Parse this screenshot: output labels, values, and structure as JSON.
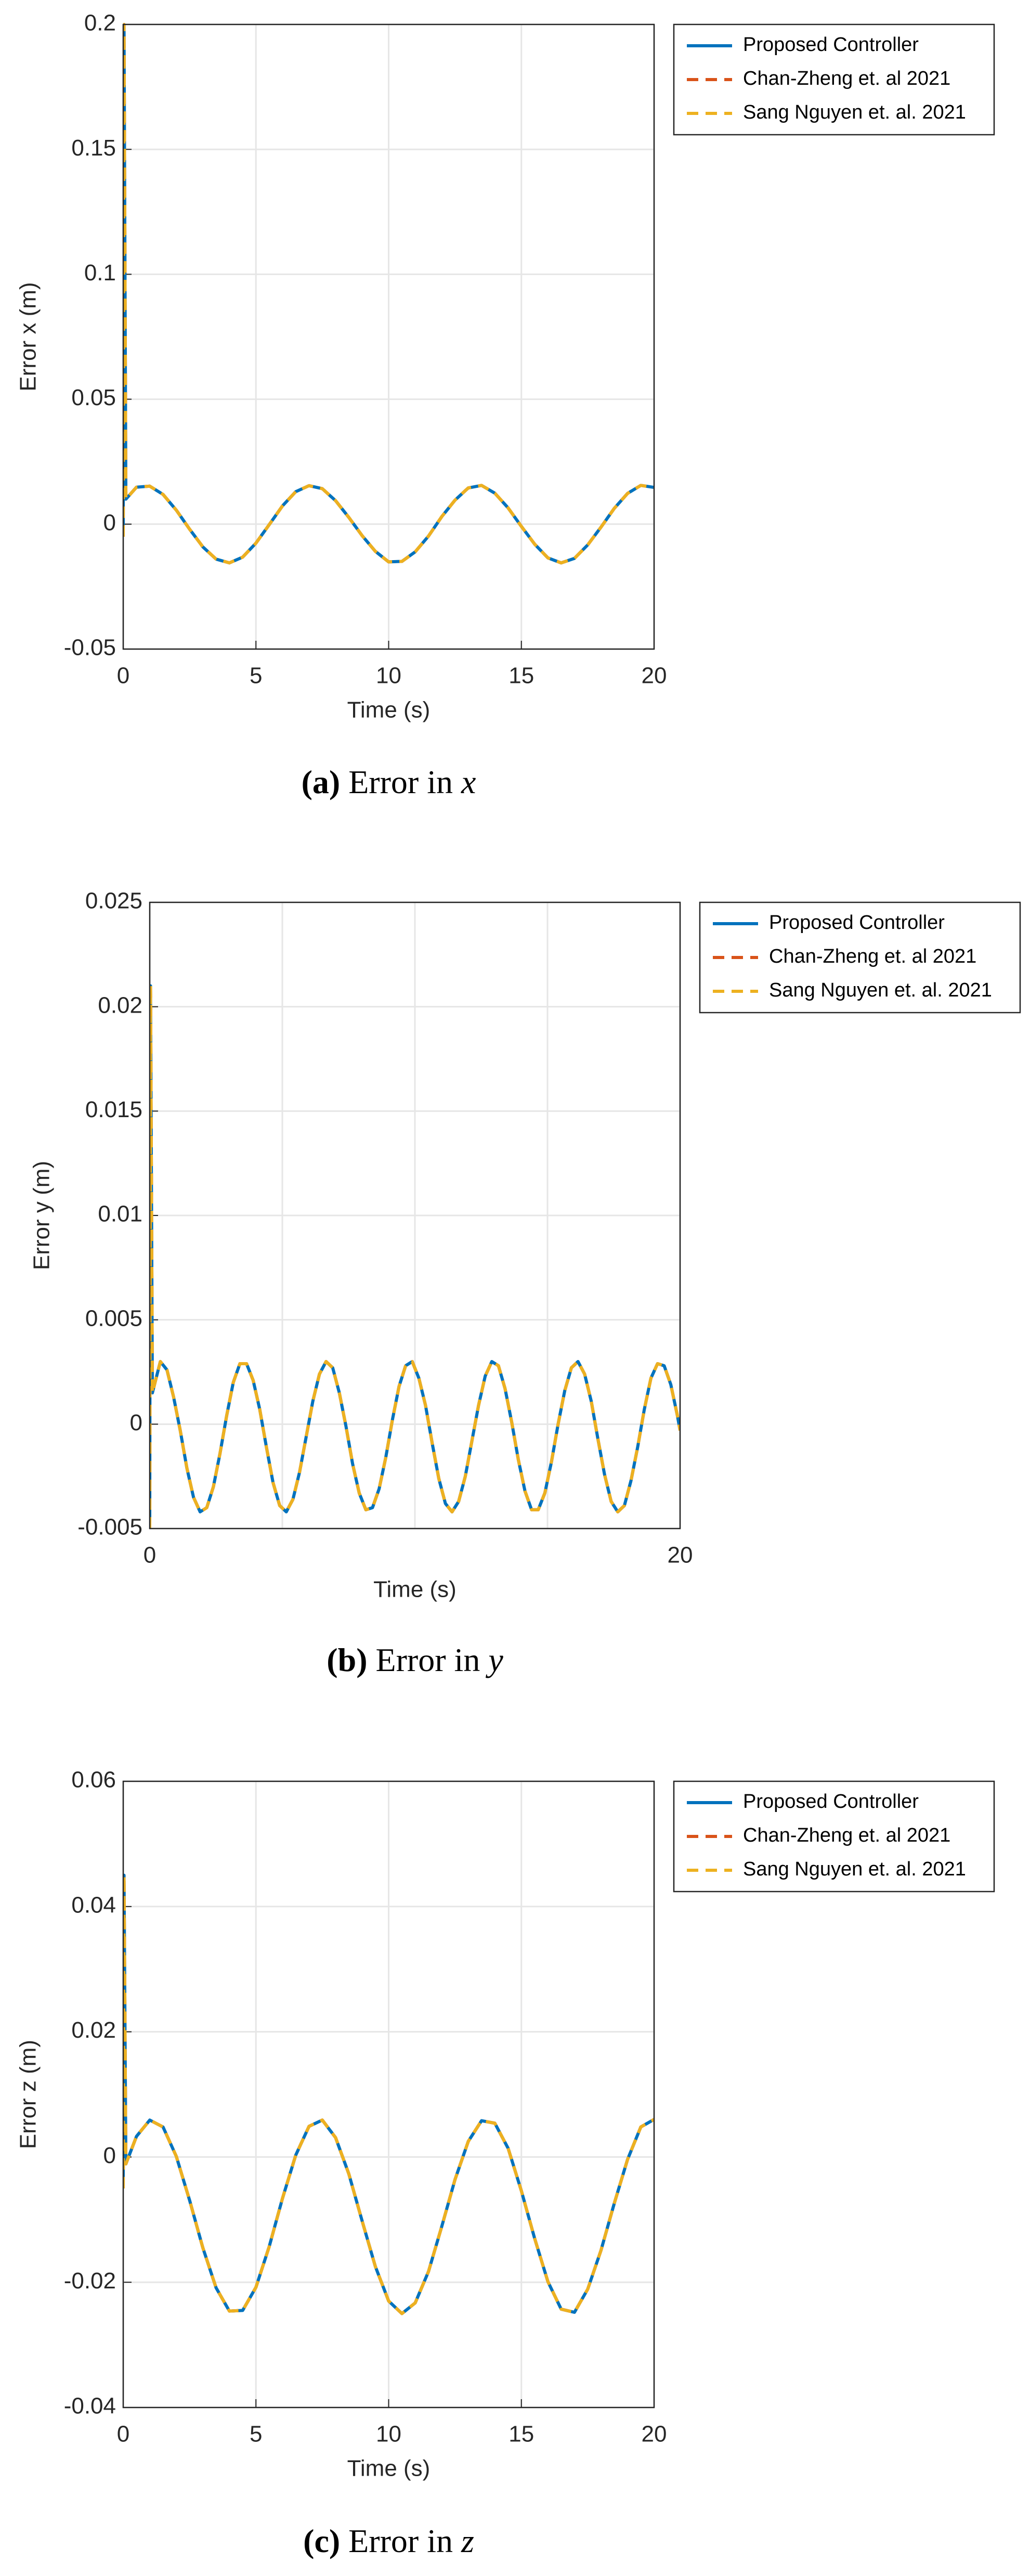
{
  "chart_data": [
    {
      "type": "line",
      "ylabel": "Error x (m)",
      "xlabel": "Time (s)",
      "caption": {
        "label": "(a)",
        "text": "Error in",
        "var": "x"
      },
      "xlim": [
        0,
        20
      ],
      "xticks": [
        0,
        5,
        10,
        15,
        20
      ],
      "ylim": [
        -0.05,
        0.2
      ],
      "yticks": [
        -0.05,
        0,
        0.05,
        0.1,
        0.15,
        0.2
      ],
      "grid": true,
      "x": [
        0,
        0.03,
        0.1,
        0.5,
        1,
        1.5,
        2,
        2.5,
        3,
        3.5,
        4,
        4.5,
        5,
        5.5,
        6,
        6.5,
        7,
        7.5,
        8,
        8.5,
        9,
        9.5,
        10,
        10.5,
        11,
        11.5,
        12,
        12.5,
        13,
        13.5,
        14,
        14.5,
        15,
        15.5,
        16,
        16.5,
        17,
        17.5,
        18,
        18.5,
        19,
        19.5,
        20
      ],
      "series": [
        {
          "name": "Proposed Controller",
          "color": "#0072BD",
          "style": "solid",
          "values": [
            -0.005,
            0.2,
            0.01,
            0.0148,
            0.0152,
            0.0119,
            0.0056,
            -0.002,
            -0.0091,
            -0.014,
            -0.0155,
            -0.0132,
            -0.0076,
            -0.0002,
            0.0073,
            0.013,
            0.0154,
            0.0142,
            0.0094,
            0.0027,
            -0.0046,
            -0.0109,
            -0.0151,
            -0.0149,
            -0.0111,
            -0.0048,
            0.003,
            0.0096,
            0.0145,
            0.0155,
            0.0124,
            0.0065,
            -0.0009,
            -0.008,
            -0.0135,
            -0.0155,
            -0.0137,
            -0.0083,
            -0.0012,
            0.0063,
            0.0123,
            0.0155,
            0.0147
          ]
        },
        {
          "name": "Chan-Zheng et. al 2021",
          "color": "#D95319",
          "style": "dashed",
          "values": [
            -0.005,
            0.2,
            0.01,
            0.0148,
            0.0152,
            0.0119,
            0.0056,
            -0.002,
            -0.0091,
            -0.014,
            -0.0155,
            -0.0132,
            -0.0076,
            -0.0002,
            0.0073,
            0.013,
            0.0154,
            0.0142,
            0.0094,
            0.0027,
            -0.0046,
            -0.0109,
            -0.0151,
            -0.0149,
            -0.0111,
            -0.0048,
            0.003,
            0.0096,
            0.0145,
            0.0155,
            0.0124,
            0.0065,
            -0.0009,
            -0.008,
            -0.0135,
            -0.0155,
            -0.0137,
            -0.0083,
            -0.0012,
            0.0063,
            0.0123,
            0.0155,
            0.0147
          ]
        },
        {
          "name": "Sang Nguyen et. al. 2021",
          "color": "#EDB120",
          "style": "dashed",
          "values": [
            -0.005,
            0.2,
            0.01,
            0.0148,
            0.0152,
            0.0119,
            0.0056,
            -0.002,
            -0.0091,
            -0.014,
            -0.0155,
            -0.0132,
            -0.0076,
            -0.0002,
            0.0073,
            0.013,
            0.0154,
            0.0142,
            0.0094,
            0.0027,
            -0.0046,
            -0.0109,
            -0.0151,
            -0.0149,
            -0.0111,
            -0.0048,
            0.003,
            0.0096,
            0.0145,
            0.0155,
            0.0124,
            0.0065,
            -0.0009,
            -0.008,
            -0.0135,
            -0.0155,
            -0.0137,
            -0.0083,
            -0.0012,
            0.0063,
            0.0123,
            0.0155,
            0.0147
          ]
        }
      ]
    },
    {
      "type": "line",
      "ylabel": "Error y (m)",
      "xlabel": "Time (s)",
      "caption": {
        "label": "(b)",
        "text": "Error in",
        "var": "y"
      },
      "xlim": [
        0,
        20
      ],
      "xticks": [
        0,
        20
      ],
      "xgrid": [
        5,
        10,
        15
      ],
      "ylim": [
        -0.005,
        0.025
      ],
      "yticks": [
        -0.005,
        0,
        0.005,
        0.01,
        0.015,
        0.02,
        0.025
      ],
      "grid": true,
      "x": [
        0,
        0.03,
        0.1,
        0.4,
        0.65,
        0.9,
        1.15,
        1.4,
        1.65,
        1.9,
        2.15,
        2.4,
        2.65,
        2.9,
        3.15,
        3.4,
        3.65,
        3.9,
        4.15,
        4.4,
        4.65,
        4.9,
        5.15,
        5.4,
        5.65,
        5.9,
        6.15,
        6.4,
        6.65,
        6.9,
        7.15,
        7.4,
        7.65,
        7.9,
        8.15,
        8.4,
        8.65,
        8.9,
        9.15,
        9.4,
        9.65,
        9.9,
        10.15,
        10.4,
        10.65,
        10.9,
        11.15,
        11.4,
        11.65,
        11.9,
        12.15,
        12.4,
        12.65,
        12.9,
        13.15,
        13.4,
        13.65,
        13.9,
        14.15,
        14.4,
        14.65,
        14.9,
        15.15,
        15.4,
        15.65,
        15.9,
        16.15,
        16.4,
        16.65,
        16.9,
        17.15,
        17.4,
        17.65,
        17.9,
        18.15,
        18.4,
        18.65,
        18.9,
        19.15,
        19.4,
        19.65,
        19.9,
        20
      ],
      "series": [
        {
          "name": "Proposed Controller",
          "color": "#0072BD",
          "style": "solid",
          "values": [
            -0.005,
            0.021,
            0.0015,
            0.003,
            0.0026,
            0.0013,
            -0.0003,
            -0.0021,
            -0.0035,
            -0.0042,
            -0.004,
            -0.003,
            -0.0014,
            0.0004,
            0.002,
            0.0029,
            0.0029,
            0.0021,
            0.0007,
            -0.0011,
            -0.0028,
            -0.0039,
            -0.0042,
            -0.0036,
            -0.0023,
            -0.0006,
            0.0011,
            0.0024,
            0.003,
            0.0027,
            0.0015,
            -0.0001,
            -0.0019,
            -0.0033,
            -0.0041,
            -0.004,
            -0.0031,
            -0.0016,
            0.0002,
            0.0018,
            0.0028,
            0.003,
            0.0022,
            0.0009,
            -0.0009,
            -0.0026,
            -0.0038,
            -0.0042,
            -0.0037,
            -0.0025,
            -0.0008,
            0.0009,
            0.0023,
            0.003,
            0.0028,
            0.0017,
            0.0001,
            -0.0017,
            -0.0032,
            -0.0041,
            -0.0041,
            -0.0033,
            -0.0018,
            0,
            0.0016,
            0.0027,
            0.003,
            0.0024,
            0.0011,
            -0.0007,
            -0.0024,
            -0.0037,
            -0.0042,
            -0.0039,
            -0.0027,
            -0.0011,
            0.0007,
            0.0022,
            0.0029,
            0.0028,
            0.0019,
            0.0004,
            -0.0003
          ]
        },
        {
          "name": "Chan-Zheng et. al 2021",
          "color": "#D95319",
          "style": "dashed",
          "values": [
            -0.005,
            0.021,
            0.0015,
            0.003,
            0.0026,
            0.0013,
            -0.0003,
            -0.0021,
            -0.0035,
            -0.0042,
            -0.004,
            -0.003,
            -0.0014,
            0.0004,
            0.002,
            0.0029,
            0.0029,
            0.0021,
            0.0007,
            -0.0011,
            -0.0028,
            -0.0039,
            -0.0042,
            -0.0036,
            -0.0023,
            -0.0006,
            0.0011,
            0.0024,
            0.003,
            0.0027,
            0.0015,
            -0.0001,
            -0.0019,
            -0.0033,
            -0.0041,
            -0.004,
            -0.0031,
            -0.0016,
            0.0002,
            0.0018,
            0.0028,
            0.003,
            0.0022,
            0.0009,
            -0.0009,
            -0.0026,
            -0.0038,
            -0.0042,
            -0.0037,
            -0.0025,
            -0.0008,
            0.0009,
            0.0023,
            0.003,
            0.0028,
            0.0017,
            0.0001,
            -0.0017,
            -0.0032,
            -0.0041,
            -0.0041,
            -0.0033,
            -0.0018,
            0,
            0.0016,
            0.0027,
            0.003,
            0.0024,
            0.0011,
            -0.0007,
            -0.0024,
            -0.0037,
            -0.0042,
            -0.0039,
            -0.0027,
            -0.0011,
            0.0007,
            0.0022,
            0.0029,
            0.0028,
            0.0019,
            0.0004,
            -0.0003
          ]
        },
        {
          "name": "Sang Nguyen et. al. 2021",
          "color": "#EDB120",
          "style": "dashed",
          "values": [
            -0.005,
            0.021,
            0.0015,
            0.003,
            0.0026,
            0.0013,
            -0.0003,
            -0.0021,
            -0.0035,
            -0.0042,
            -0.004,
            -0.003,
            -0.0014,
            0.0004,
            0.002,
            0.0029,
            0.0029,
            0.0021,
            0.0007,
            -0.0011,
            -0.0028,
            -0.0039,
            -0.0042,
            -0.0036,
            -0.0023,
            -0.0006,
            0.0011,
            0.0024,
            0.003,
            0.0027,
            0.0015,
            -0.0001,
            -0.0019,
            -0.0033,
            -0.0041,
            -0.004,
            -0.0031,
            -0.0016,
            0.0002,
            0.0018,
            0.0028,
            0.003,
            0.0022,
            0.0009,
            -0.0009,
            -0.0026,
            -0.0038,
            -0.0042,
            -0.0037,
            -0.0025,
            -0.0008,
            0.0009,
            0.0023,
            0.003,
            0.0028,
            0.0017,
            0.0001,
            -0.0017,
            -0.0032,
            -0.0041,
            -0.0041,
            -0.0033,
            -0.0018,
            0,
            0.0016,
            0.0027,
            0.003,
            0.0024,
            0.0011,
            -0.0007,
            -0.0024,
            -0.0037,
            -0.0042,
            -0.0039,
            -0.0027,
            -0.0011,
            0.0007,
            0.0022,
            0.0029,
            0.0028,
            0.0019,
            0.0004,
            -0.0003
          ]
        }
      ]
    },
    {
      "type": "line",
      "ylabel": "Error z (m)",
      "xlabel": "Time (s)",
      "caption": {
        "label": "(c)",
        "text": "Error in",
        "var": "z"
      },
      "xlim": [
        0,
        20
      ],
      "xticks": [
        0,
        5,
        10,
        15,
        20
      ],
      "ylim": [
        -0.04,
        0.06
      ],
      "yticks": [
        -0.04,
        -0.02,
        0,
        0.02,
        0.04,
        0.06
      ],
      "grid": true,
      "x": [
        0,
        0.03,
        0.1,
        0.5,
        1,
        1.5,
        2,
        2.5,
        3,
        3.5,
        4,
        4.5,
        5,
        5.5,
        6,
        6.5,
        7,
        7.5,
        8,
        8.5,
        9,
        9.5,
        10,
        10.5,
        11,
        11.5,
        12,
        12.5,
        13,
        13.5,
        14,
        14.5,
        15,
        15.5,
        16,
        16.5,
        17,
        17.5,
        18,
        18.5,
        19,
        19.5,
        20
      ],
      "series": [
        {
          "name": "Proposed Controller",
          "color": "#0072BD",
          "style": "solid",
          "values": [
            -0.005,
            0.045,
            -0.0011,
            0.0033,
            0.0059,
            0.0048,
            0.0001,
            -0.0069,
            -0.0145,
            -0.0209,
            -0.0246,
            -0.0245,
            -0.0208,
            -0.0143,
            -0.0066,
            0.0003,
            0.0049,
            0.0059,
            0.0031,
            -0.0027,
            -0.0102,
            -0.0175,
            -0.023,
            -0.025,
            -0.0233,
            -0.0183,
            -0.0111,
            -0.0036,
            0.0025,
            0.0058,
            0.0054,
            0.0014,
            -0.0054,
            -0.013,
            -0.0199,
            -0.0243,
            -0.0248,
            -0.0211,
            -0.0149,
            -0.0074,
            -0.0004,
            0.0048,
            0.006
          ]
        },
        {
          "name": "Chan-Zheng et. al 2021",
          "color": "#D95319",
          "style": "dashed",
          "values": [
            -0.005,
            0.045,
            -0.0011,
            0.0033,
            0.0059,
            0.0048,
            0.0001,
            -0.0069,
            -0.0145,
            -0.0209,
            -0.0246,
            -0.0245,
            -0.0208,
            -0.0143,
            -0.0066,
            0.0003,
            0.0049,
            0.0059,
            0.0031,
            -0.0027,
            -0.0102,
            -0.0175,
            -0.023,
            -0.025,
            -0.0233,
            -0.0183,
            -0.0111,
            -0.0036,
            0.0025,
            0.0058,
            0.0054,
            0.0014,
            -0.0054,
            -0.013,
            -0.0199,
            -0.0243,
            -0.0248,
            -0.0211,
            -0.0149,
            -0.0074,
            -0.0004,
            0.0048,
            0.006
          ]
        },
        {
          "name": "Sang Nguyen et. al. 2021",
          "color": "#EDB120",
          "style": "dashed",
          "values": [
            -0.005,
            0.045,
            -0.0011,
            0.0033,
            0.0059,
            0.0048,
            0.0001,
            -0.0069,
            -0.0145,
            -0.0209,
            -0.0246,
            -0.0245,
            -0.0208,
            -0.0143,
            -0.0066,
            0.0003,
            0.0049,
            0.0059,
            0.0031,
            -0.0027,
            -0.0102,
            -0.0175,
            -0.023,
            -0.025,
            -0.0233,
            -0.0183,
            -0.0111,
            -0.0036,
            0.0025,
            0.0058,
            0.0054,
            0.0014,
            -0.0054,
            -0.013,
            -0.0199,
            -0.0243,
            -0.0248,
            -0.0211,
            -0.0149,
            -0.0074,
            -0.0004,
            0.0048,
            0.006
          ]
        }
      ]
    }
  ]
}
